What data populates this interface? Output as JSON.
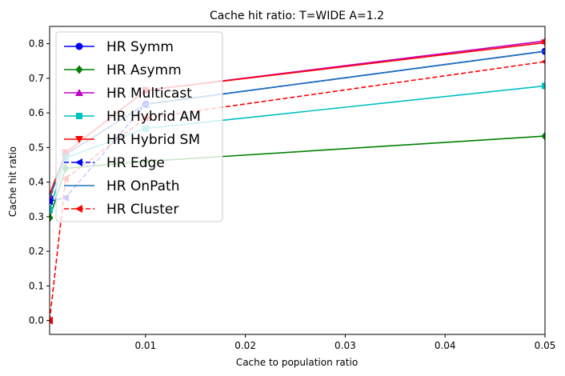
{
  "chart_data": {
    "type": "line",
    "title": "Cache hit ratio: T=WIDE A=1.2",
    "xlabel": "Cache to population ratio",
    "ylabel": "Cache hit ratio",
    "xlim": [
      0.0004,
      0.05
    ],
    "ylim": [
      -0.04,
      0.85
    ],
    "xticks": [
      0.01,
      0.02,
      0.03,
      0.04,
      0.05
    ],
    "xtick_labels": [
      "0.01",
      "0.02",
      "0.03",
      "0.04",
      "0.05"
    ],
    "yticks": [
      0.0,
      0.1,
      0.2,
      0.3,
      0.4,
      0.5,
      0.6,
      0.7,
      0.8
    ],
    "ytick_labels": [
      "0.0",
      "0.1",
      "0.2",
      "0.3",
      "0.4",
      "0.5",
      "0.6",
      "0.7",
      "0.8"
    ],
    "grid": false,
    "legend_position": "top-left",
    "x": [
      0.0004,
      0.002,
      0.01,
      0.05
    ],
    "series": [
      {
        "name": "HR Symm",
        "color": "#0000ff",
        "marker": "circle",
        "dash": "solid",
        "values": [
          0.355,
          0.48,
          0.625,
          0.778
        ]
      },
      {
        "name": "HR Asymm",
        "color": "#008000",
        "marker": "diamond",
        "dash": "solid",
        "values": [
          0.297,
          0.44,
          0.46,
          0.533
        ]
      },
      {
        "name": "HR Multicast",
        "color": "#bf00bf",
        "marker": "triangle-up",
        "dash": "solid",
        "values": [
          0.36,
          0.485,
          0.665,
          0.808
        ]
      },
      {
        "name": "HR Hybrid AM",
        "color": "#00bfbf",
        "marker": "square",
        "dash": "solid",
        "values": [
          0.32,
          0.47,
          0.555,
          0.678
        ]
      },
      {
        "name": "HR Hybrid SM",
        "color": "#ff0000",
        "marker": "triangle-down",
        "dash": "solid",
        "values": [
          0.365,
          0.485,
          0.665,
          0.803
        ]
      },
      {
        "name": "HR Edge",
        "color": "#0000ff",
        "marker": "triangle-left",
        "dash": "dashed",
        "values": [
          0.345,
          0.355,
          0.625,
          0.778
        ]
      },
      {
        "name": "HR OnPath",
        "color": "#1f77b4",
        "marker": "none",
        "dash": "solid",
        "values": [
          0.355,
          0.48,
          0.625,
          0.778
        ]
      },
      {
        "name": "HR Cluster",
        "color": "#ff0000",
        "marker": "triangle-left",
        "dash": "dashed",
        "values": [
          0.0,
          0.41,
          0.585,
          0.748
        ]
      }
    ]
  }
}
